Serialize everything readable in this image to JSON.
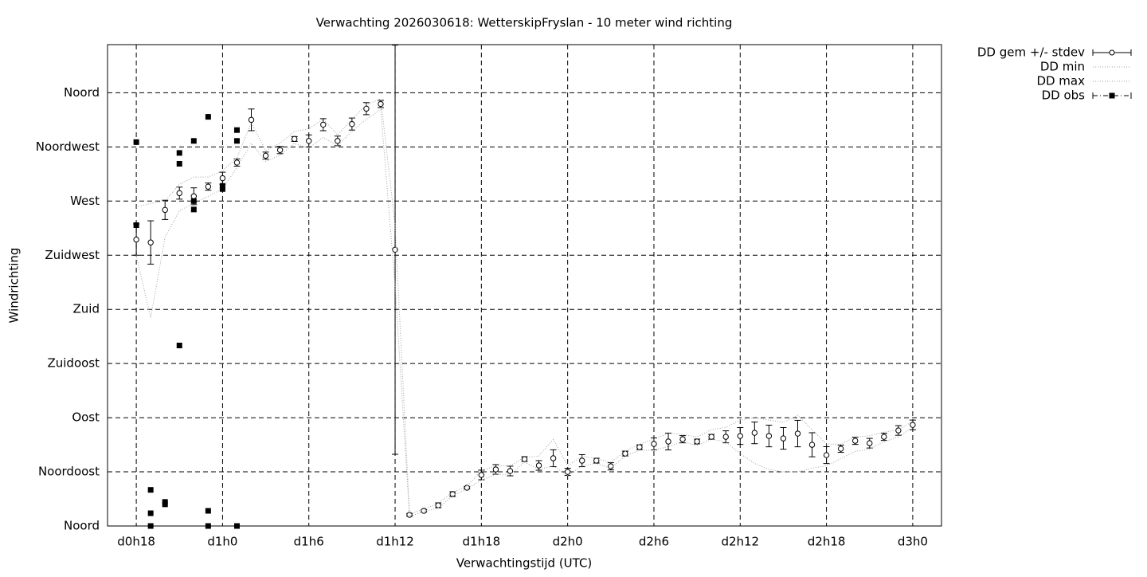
{
  "chart_data": {
    "type": "errorbar",
    "title": "Verwachting 2026030618: WetterskipFryslan - 10 meter wind richting",
    "x_label": "Verwachtingstijd (UTC)",
    "y_label": "Windrichting",
    "grid": true,
    "legend": "outside-right",
    "xlim": [
      16,
      74
    ],
    "xticks": [
      {
        "value": 18,
        "label": "d0h18"
      },
      {
        "value": 24,
        "label": "d1h0"
      },
      {
        "value": 30,
        "label": "d1h6"
      },
      {
        "value": 36,
        "label": "d1h12"
      },
      {
        "value": 42,
        "label": "d1h18"
      },
      {
        "value": 48,
        "label": "d2h0"
      },
      {
        "value": 54,
        "label": "d2h6"
      },
      {
        "value": 60,
        "label": "d2h12"
      },
      {
        "value": 66,
        "label": "d2h18"
      },
      {
        "value": 72,
        "label": "d3h0"
      }
    ],
    "ylim": [
      0,
      400
    ],
    "yticks": [
      {
        "value": 0,
        "label": "Noord"
      },
      {
        "value": 45,
        "label": "Noordoost"
      },
      {
        "value": 90,
        "label": "Oost"
      },
      {
        "value": 135,
        "label": "Zuidoost"
      },
      {
        "value": 180,
        "label": "Zuid"
      },
      {
        "value": 225,
        "label": "Zuidwest"
      },
      {
        "value": 270,
        "label": "West"
      },
      {
        "value": 315,
        "label": "Noordwest"
      },
      {
        "value": 360,
        "label": "Noord"
      }
    ],
    "x": [
      18,
      19,
      20,
      21,
      22,
      23,
      24,
      25,
      26,
      27,
      28,
      29,
      30,
      31,
      32,
      33,
      34,
      35,
      36,
      37,
      38,
      39,
      40,
      41,
      42,
      43,
      44,
      45,
      46,
      47,
      48,
      49,
      50,
      51,
      52,
      53,
      54,
      55,
      56,
      57,
      58,
      59,
      60,
      61,
      62,
      63,
      64,
      65,
      66,
      67,
      68,
      69,
      70,
      71,
      72
    ],
    "series": [
      {
        "name": "DD gem +/- stdev",
        "color": "#000000",
        "values": [
          238,
          235.6,
          262.7,
          276.6,
          274,
          282,
          289,
          302,
          337.5,
          307.7,
          312.4,
          321.6,
          320,
          333.5,
          320,
          334,
          346.8,
          350.7,
          229.6,
          9.3,
          12.6,
          17.2,
          26.5,
          31.8,
          42.4,
          47,
          45.7,
          55.6,
          50.3,
          56.3,
          45,
          54.3,
          54.3,
          49.6,
          60.2,
          65.5,
          68.2,
          70.2,
          72.1,
          70.2,
          74.1,
          74.1,
          74.8,
          77.4,
          74.8,
          72.8,
          76.8,
          67.5,
          58.9,
          64.2,
          70.8,
          68.8,
          74.1,
          79.4,
          84
        ],
        "errors": [
          13,
          18,
          8,
          5,
          7,
          3,
          5,
          3,
          9,
          3,
          3,
          2,
          5,
          5,
          4,
          5,
          5,
          3,
          170,
          1,
          1,
          2,
          2,
          1,
          4,
          4,
          4,
          2,
          4,
          7,
          3,
          5,
          2,
          3,
          2,
          2,
          5,
          7,
          3,
          2,
          2,
          5,
          7,
          9,
          9,
          9,
          11,
          10,
          7,
          3,
          3,
          4,
          3,
          4,
          4
        ]
      },
      {
        "name": "DD min",
        "color": "#a0a0a0",
        "values": [
          225,
          173,
          240,
          262,
          268,
          274,
          280,
          298,
          318,
          303,
          308,
          318,
          314,
          323,
          316,
          328,
          338,
          346,
          200,
          8,
          12,
          15,
          25,
          31,
          38,
          43,
          43,
          53,
          47,
          50,
          42,
          50,
          52,
          48,
          58,
          63,
          63,
          66,
          70,
          67,
          72,
          70,
          60,
          52,
          47,
          45,
          45,
          48,
          50,
          56,
          62,
          64,
          70,
          74,
          82
        ]
      },
      {
        "name": "DD max",
        "color": "#a0a0a0",
        "values": [
          265,
          268,
          270,
          284,
          290,
          290,
          295,
          306,
          335,
          312,
          318,
          328,
          330,
          338,
          325,
          338,
          350,
          355,
          250,
          10,
          14,
          19,
          28,
          33,
          46,
          50,
          50,
          57,
          58,
          72,
          50,
          58,
          56,
          53,
          62,
          68,
          72,
          77,
          76,
          74,
          80,
          82,
          88,
          90,
          88,
          86,
          92,
          80,
          68,
          68,
          74,
          75,
          78,
          80,
          87
        ]
      },
      {
        "name": "DD obs",
        "color": "#000000",
        "x": [
          18,
          18,
          19,
          19,
          19,
          20,
          20,
          21,
          21,
          21,
          22,
          22,
          22,
          23,
          23,
          23,
          24,
          24,
          25,
          25,
          25
        ],
        "values": [
          319,
          250,
          30,
          10.6,
          0,
          20,
          18,
          310,
          301,
          150,
          320,
          270,
          263,
          340,
          12.6,
          0,
          282.6,
          280,
          329,
          320,
          0
        ]
      }
    ]
  }
}
